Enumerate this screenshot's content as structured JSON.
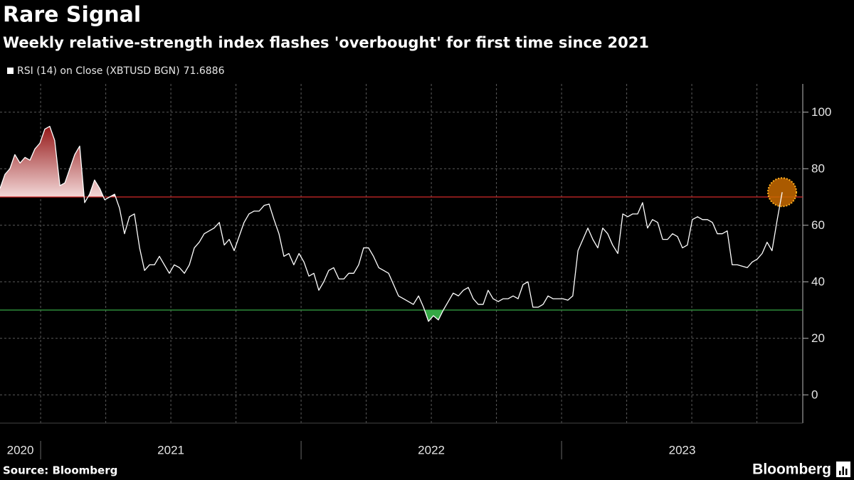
{
  "chart_data": {
    "type": "line",
    "title": "Rare Signal",
    "subtitle": "Weekly relative-strength index flashes 'overbought' for first time since 2021",
    "source": "Source: Bloomberg",
    "logo": "Bloomberg",
    "series": [
      {
        "name": "RSI (14)  on Close (XBTUSD BGN)",
        "color": "#ffffff",
        "x": [
          2020.844,
          2020.863,
          2020.882,
          2020.901,
          2020.921,
          2020.94,
          2020.959,
          2020.978,
          2020.997,
          2021.016,
          2021.035,
          2021.054,
          2021.074,
          2021.093,
          2021.112,
          2021.131,
          2021.15,
          2021.169,
          2021.188,
          2021.207,
          2021.227,
          2021.246,
          2021.265,
          2021.284,
          2021.303,
          2021.322,
          2021.341,
          2021.36,
          2021.38,
          2021.399,
          2021.418,
          2021.437,
          2021.456,
          2021.475,
          2021.494,
          2021.513,
          2021.533,
          2021.552,
          2021.571,
          2021.59,
          2021.609,
          2021.628,
          2021.647,
          2021.666,
          2021.686,
          2021.705,
          2021.724,
          2021.743,
          2021.762,
          2021.781,
          2021.8,
          2021.819,
          2021.839,
          2021.858,
          2021.877,
          2021.896,
          2021.915,
          2021.934,
          2021.953,
          2021.972,
          2021.992,
          2022.011,
          2022.03,
          2022.049,
          2022.068,
          2022.087,
          2022.106,
          2022.125,
          2022.145,
          2022.164,
          2022.183,
          2022.202,
          2022.221,
          2022.24,
          2022.259,
          2022.278,
          2022.298,
          2022.317,
          2022.336,
          2022.355,
          2022.374,
          2022.393,
          2022.412,
          2022.431,
          2022.451,
          2022.47,
          2022.489,
          2022.508,
          2022.527,
          2022.546,
          2022.565,
          2022.584,
          2022.604,
          2022.623,
          2022.642,
          2022.661,
          2022.68,
          2022.699,
          2022.718,
          2022.737,
          2022.757,
          2022.776,
          2022.795,
          2022.814,
          2022.833,
          2022.852,
          2022.871,
          2022.89,
          2022.91,
          2022.929,
          2022.948,
          2022.967,
          2022.986,
          2023.005,
          2023.024,
          2023.043,
          2023.063,
          2023.082,
          2023.101,
          2023.12,
          2023.139,
          2023.158,
          2023.177,
          2023.196,
          2023.216,
          2023.235,
          2023.254,
          2023.273,
          2023.292,
          2023.311,
          2023.33,
          2023.349,
          2023.369,
          2023.388,
          2023.407,
          2023.426,
          2023.445,
          2023.464,
          2023.483,
          2023.502,
          2023.522,
          2023.541,
          2023.56,
          2023.579,
          2023.598,
          2023.617,
          2023.636,
          2023.655,
          2023.675,
          2023.694,
          2023.713,
          2023.732,
          2023.751,
          2023.77,
          2023.789,
          2023.808,
          2023.828,
          2023.847
        ],
        "values": [
          73,
          78,
          80,
          85,
          82,
          84,
          83,
          87,
          89,
          94,
          95,
          90,
          74,
          75,
          80,
          85,
          88,
          68,
          71,
          76,
          73,
          69,
          70,
          71,
          66,
          57,
          63,
          64,
          52,
          44,
          46,
          46,
          49,
          46,
          43,
          46,
          45,
          43,
          46,
          52,
          54,
          57,
          58,
          59,
          61,
          53,
          55,
          51,
          56,
          61,
          64,
          65,
          65,
          67,
          67.5,
          62,
          57,
          49,
          50,
          46,
          50,
          47,
          42,
          43,
          37,
          40,
          44,
          45,
          41,
          41,
          43,
          43,
          46,
          52,
          52,
          49,
          45,
          44,
          43,
          39,
          35,
          34,
          33,
          32,
          35,
          31,
          26,
          28,
          26.5,
          30,
          33,
          36,
          35,
          37,
          38,
          34,
          32,
          32,
          37,
          34,
          33,
          34,
          34,
          35,
          34,
          39,
          40,
          31,
          31,
          32,
          35,
          34,
          34,
          34,
          33.5,
          35,
          51,
          55,
          59,
          55,
          52,
          59,
          57,
          53,
          50,
          64,
          63,
          64,
          64,
          68,
          59,
          62,
          61,
          55,
          55,
          57,
          56,
          52,
          53,
          62,
          63,
          62,
          62,
          61,
          57,
          57,
          58,
          46,
          46,
          45.5,
          45,
          47,
          48,
          50,
          54,
          51,
          62,
          71.6886
        ]
      }
    ],
    "reference_lines": [
      {
        "value": 70,
        "color": "#d42a2a"
      },
      {
        "value": 30,
        "color": "#35a845"
      }
    ],
    "xlim": [
      2020.844,
      2023.926
    ],
    "xticks": [
      {
        "value": 2020,
        "label": "2020"
      },
      {
        "value": 2021,
        "label": "2021"
      },
      {
        "value": 2022,
        "label": "2022"
      },
      {
        "value": 2023,
        "label": "2023"
      }
    ],
    "xgrid": [
      2021,
      2021.25,
      2021.5,
      2021.75,
      2022,
      2022.25,
      2022.5,
      2022.75,
      2023,
      2023.25,
      2023.5,
      2023.75
    ],
    "ylim": [
      -10,
      110
    ],
    "yticks": [
      0,
      20,
      40,
      60,
      80,
      100
    ],
    "grid": true
  }
}
